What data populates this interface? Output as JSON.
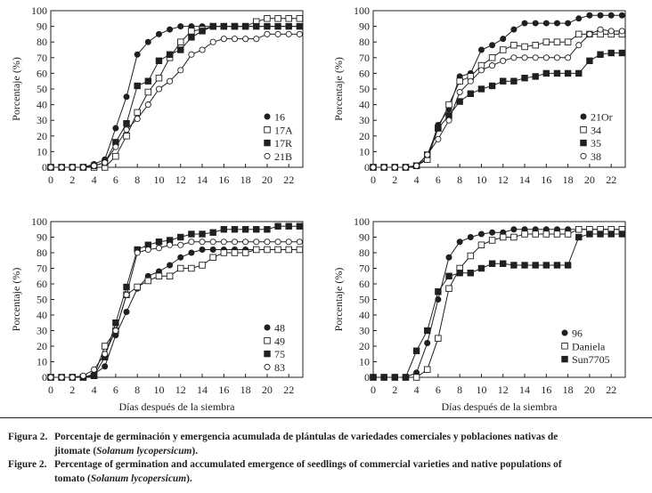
{
  "chart_data": [
    {
      "type": "line",
      "xlabel": "",
      "ylabel": "Porcentaje (%)",
      "xlim": [
        0,
        23.3
      ],
      "ylim": [
        0,
        100
      ],
      "xticks": [
        0,
        2,
        4,
        6,
        8,
        10,
        12,
        14,
        16,
        18,
        20,
        22
      ],
      "yticks": [
        0,
        10,
        20,
        30,
        40,
        50,
        60,
        70,
        80,
        90,
        100
      ],
      "legend_position": "bottom-right",
      "x": [
        0,
        1,
        2,
        3,
        4,
        5,
        6,
        7,
        8,
        9,
        10,
        11,
        12,
        13,
        14,
        15,
        16,
        17,
        18,
        19,
        20,
        21,
        22,
        23
      ],
      "series": [
        {
          "name": "16",
          "marker": "filled-circle",
          "values": [
            0,
            0,
            0,
            0,
            2,
            5,
            25,
            45,
            72,
            80,
            85,
            88,
            90,
            90,
            90,
            90,
            90,
            90,
            90,
            90,
            90,
            90,
            90,
            90
          ]
        },
        {
          "name": "17A",
          "marker": "open-square",
          "values": [
            0,
            0,
            0,
            0,
            0,
            0,
            7,
            20,
            35,
            48,
            57,
            70,
            80,
            87,
            88,
            90,
            90,
            90,
            90,
            93,
            95,
            95,
            95,
            95
          ]
        },
        {
          "name": "17R",
          "marker": "filled-square",
          "values": [
            0,
            0,
            0,
            0,
            1,
            3,
            16,
            28,
            52,
            55,
            68,
            72,
            75,
            83,
            87,
            90,
            90,
            90,
            90,
            90,
            90,
            90,
            90,
            90
          ]
        },
        {
          "name": "21B",
          "marker": "open-circle",
          "values": [
            0,
            0,
            0,
            0,
            1,
            3,
            13,
            24,
            31,
            40,
            50,
            55,
            62,
            72,
            75,
            80,
            82,
            82,
            82,
            82,
            85,
            85,
            85,
            85
          ]
        }
      ]
    },
    {
      "type": "line",
      "xlabel": "",
      "ylabel": "Porcentaje (%)",
      "xlim": [
        0,
        23.3
      ],
      "ylim": [
        0,
        100
      ],
      "xticks": [
        0,
        2,
        4,
        6,
        8,
        10,
        12,
        14,
        16,
        18,
        20,
        22
      ],
      "yticks": [
        0,
        10,
        20,
        30,
        40,
        50,
        60,
        70,
        80,
        90,
        100
      ],
      "legend_position": "bottom-right",
      "x": [
        0,
        1,
        2,
        3,
        4,
        5,
        6,
        7,
        8,
        9,
        10,
        11,
        12,
        13,
        14,
        15,
        16,
        17,
        18,
        19,
        20,
        21,
        22,
        23
      ],
      "series": [
        {
          "name": "21Or",
          "marker": "filled-circle",
          "values": [
            0,
            0,
            0,
            0,
            1,
            6,
            27,
            37,
            58,
            60,
            75,
            78,
            82,
            88,
            92,
            92,
            92,
            92,
            92,
            95,
            97,
            97,
            97,
            97
          ]
        },
        {
          "name": "34",
          "marker": "open-square",
          "values": [
            0,
            0,
            0,
            0,
            1,
            5,
            25,
            40,
            55,
            58,
            65,
            70,
            75,
            78,
            77,
            78,
            80,
            80,
            80,
            85,
            85,
            85,
            85,
            85
          ]
        },
        {
          "name": "35",
          "marker": "filled-square",
          "values": [
            0,
            0,
            0,
            0,
            1,
            8,
            25,
            33,
            42,
            47,
            50,
            52,
            55,
            55,
            57,
            58,
            60,
            60,
            60,
            60,
            68,
            72,
            73,
            73
          ]
        },
        {
          "name": "38",
          "marker": "open-circle",
          "values": [
            0,
            0,
            0,
            0,
            1,
            8,
            18,
            30,
            48,
            55,
            62,
            65,
            68,
            70,
            70,
            70,
            70,
            70,
            70,
            78,
            85,
            88,
            87,
            87
          ]
        }
      ]
    },
    {
      "type": "line",
      "xlabel": "Días después de la siembra",
      "ylabel": "Porcentaje (%)",
      "xlim": [
        0,
        23.3
      ],
      "ylim": [
        0,
        100
      ],
      "xticks": [
        0,
        2,
        4,
        6,
        8,
        10,
        12,
        14,
        16,
        18,
        20,
        22
      ],
      "yticks": [
        0,
        10,
        20,
        30,
        40,
        50,
        60,
        70,
        80,
        90,
        100
      ],
      "legend_position": "bottom-right",
      "x": [
        0,
        1,
        2,
        3,
        4,
        5,
        6,
        7,
        8,
        9,
        10,
        11,
        12,
        13,
        14,
        15,
        16,
        17,
        18,
        19,
        20,
        21,
        22,
        23
      ],
      "series": [
        {
          "name": "48",
          "marker": "filled-circle",
          "values": [
            0,
            0,
            0,
            0,
            2,
            7,
            27,
            42,
            57,
            65,
            68,
            72,
            77,
            80,
            82,
            82,
            82,
            82,
            82,
            82,
            82,
            82,
            82,
            82
          ]
        },
        {
          "name": "49",
          "marker": "open-square",
          "values": [
            0,
            0,
            0,
            0,
            1,
            20,
            30,
            53,
            58,
            62,
            65,
            65,
            70,
            70,
            72,
            77,
            80,
            80,
            80,
            82,
            82,
            82,
            82,
            82
          ]
        },
        {
          "name": "75",
          "marker": "filled-square",
          "values": [
            0,
            0,
            0,
            0,
            1,
            13,
            35,
            58,
            82,
            85,
            87,
            88,
            90,
            92,
            92,
            93,
            95,
            95,
            95,
            95,
            95,
            97,
            97,
            97
          ]
        },
        {
          "name": "83",
          "marker": "open-circle",
          "values": [
            0,
            0,
            0,
            1,
            5,
            15,
            30,
            53,
            80,
            82,
            83,
            85,
            85,
            87,
            87,
            87,
            87,
            87,
            87,
            87,
            87,
            87,
            87,
            87
          ]
        }
      ]
    },
    {
      "type": "line",
      "xlabel": "Días después de la siembra",
      "ylabel": "Porcentaje (%)",
      "xlim": [
        0,
        23.3
      ],
      "ylim": [
        0,
        100
      ],
      "xticks": [
        0,
        2,
        4,
        6,
        8,
        10,
        12,
        14,
        16,
        18,
        20,
        22
      ],
      "yticks": [
        0,
        10,
        20,
        30,
        40,
        50,
        60,
        70,
        80,
        90,
        100
      ],
      "legend_position": "bottom-right",
      "x": [
        0,
        1,
        2,
        3,
        4,
        5,
        6,
        7,
        8,
        9,
        10,
        11,
        12,
        13,
        14,
        15,
        16,
        17,
        18,
        19,
        20,
        21,
        22,
        23
      ],
      "series": [
        {
          "name": "96",
          "marker": "filled-circle",
          "values": [
            0,
            0,
            0,
            0,
            3,
            22,
            50,
            77,
            87,
            90,
            92,
            93,
            93,
            95,
            95,
            95,
            95,
            95,
            95,
            95,
            95,
            95,
            95,
            95
          ]
        },
        {
          "name": "Daniela",
          "marker": "open-square",
          "values": [
            0,
            0,
            0,
            0,
            0,
            5,
            25,
            57,
            70,
            78,
            85,
            88,
            90,
            90,
            92,
            92,
            92,
            92,
            92,
            95,
            95,
            95,
            95,
            95
          ]
        },
        {
          "name": "Sun7705",
          "marker": "filled-square",
          "values": [
            0,
            0,
            0,
            0,
            17,
            30,
            55,
            65,
            67,
            67,
            70,
            73,
            73,
            72,
            72,
            72,
            72,
            72,
            72,
            90,
            92,
            92,
            92,
            92
          ]
        }
      ]
    }
  ],
  "caption": {
    "es": {
      "label": "Figura 2.",
      "line1": "Porcentaje de germinación y emergencia acumulada de plántulas de variedades comerciales y poblaciones nativas de",
      "line2_pre": "jitomate (",
      "line2_species": "Solanum lycopersicum",
      "line2_post": ")."
    },
    "en": {
      "label": "Figure 2.",
      "line1": "Percentage of germination and accumulated emergence of seedlings of commercial varieties and native populations of",
      "line2_pre": "tomato (",
      "line2_species": "Solanum lycopersicum",
      "line2_post": ")."
    }
  }
}
